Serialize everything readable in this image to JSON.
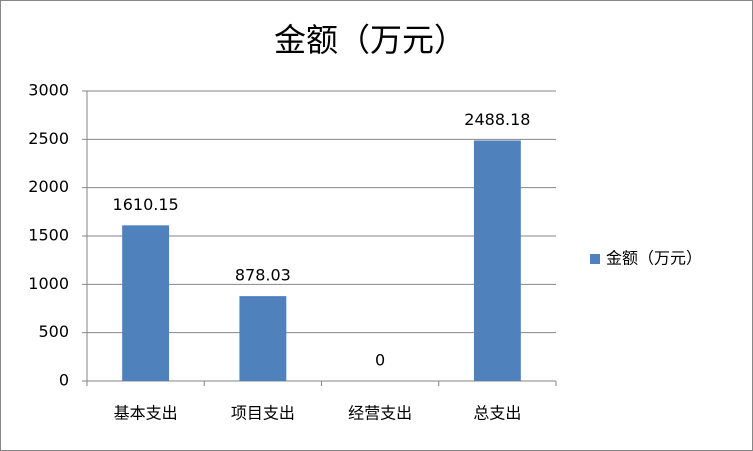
{
  "chart_data": {
    "type": "bar",
    "title": "金额（万元）",
    "categories": [
      "基本支出",
      "项目支出",
      "经营支出",
      "总支出"
    ],
    "series": [
      {
        "name": "金额（万元）",
        "color": "#4f81bd",
        "values": [
          1610.15,
          878.03,
          0,
          2488.18
        ]
      }
    ],
    "ylim": [
      0,
      3000
    ],
    "yticks": [
      0,
      500,
      1000,
      1500,
      2000,
      2500,
      3000
    ],
    "grid": true,
    "legend": "right",
    "data_labels": true
  }
}
